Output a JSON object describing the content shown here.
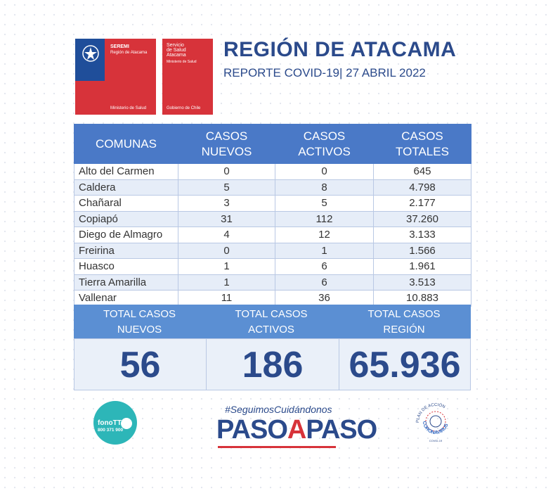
{
  "logos": {
    "seremi": {
      "title": "SEREMI",
      "subtitle": "Región de Atacama",
      "bottom": "Ministerio de Salud"
    },
    "servicio": {
      "title": "Servicio\nde Salud\nAtacama",
      "subtitle": "Ministerio de Salud",
      "bottom": "Gobierno de Chile"
    }
  },
  "header": {
    "title": "REGIÓN DE ATACAMA",
    "subtitle": "REPORTE COVID-19| 27 ABRIL 2022"
  },
  "table": {
    "headers": [
      "COMUNAS",
      "CASOS\nNUEVOS",
      "CASOS\nACTIVOS",
      "CASOS\nTOTALES"
    ],
    "rows": [
      [
        "Alto del Carmen",
        "0",
        "0",
        "645"
      ],
      [
        "Caldera",
        "5",
        "8",
        "4.798"
      ],
      [
        "Chañaral",
        "3",
        "5",
        "2.177"
      ],
      [
        "Copiapó",
        "31",
        "112",
        "37.260"
      ],
      [
        "Diego de Almagro",
        "4",
        "12",
        "3.133"
      ],
      [
        "Freirina",
        "0",
        "1",
        "1.566"
      ],
      [
        "Huasco",
        "1",
        "6",
        "1.961"
      ],
      [
        "Tierra Amarilla",
        "1",
        "6",
        "3.513"
      ],
      [
        "Vallenar",
        "11",
        "36",
        "10.883"
      ]
    ]
  },
  "totals": {
    "labels": [
      "TOTAL CASOS\nNUEVOS",
      "TOTAL CASOS\nACTIVOS",
      "TOTAL CASOS\nREGIÓN"
    ],
    "values": [
      "56",
      "186",
      "65.936"
    ]
  },
  "footer": {
    "fono_name": "fonoTTA",
    "fono_number": "800 371 900",
    "hashtag": "#SeguimosCuidándonos",
    "paso_1": "PASO",
    "paso_a": "A",
    "paso_2": "PASO",
    "plan_top": "PLAN DE ACCIÓN",
    "plan_main": "CORONAVIRUS",
    "plan_bottom": "COVID-19"
  },
  "colors": {
    "primary": "#2b4a8b",
    "header_blue": "#4a79c7",
    "red": "#d7333a",
    "teal": "#2db6b8"
  }
}
